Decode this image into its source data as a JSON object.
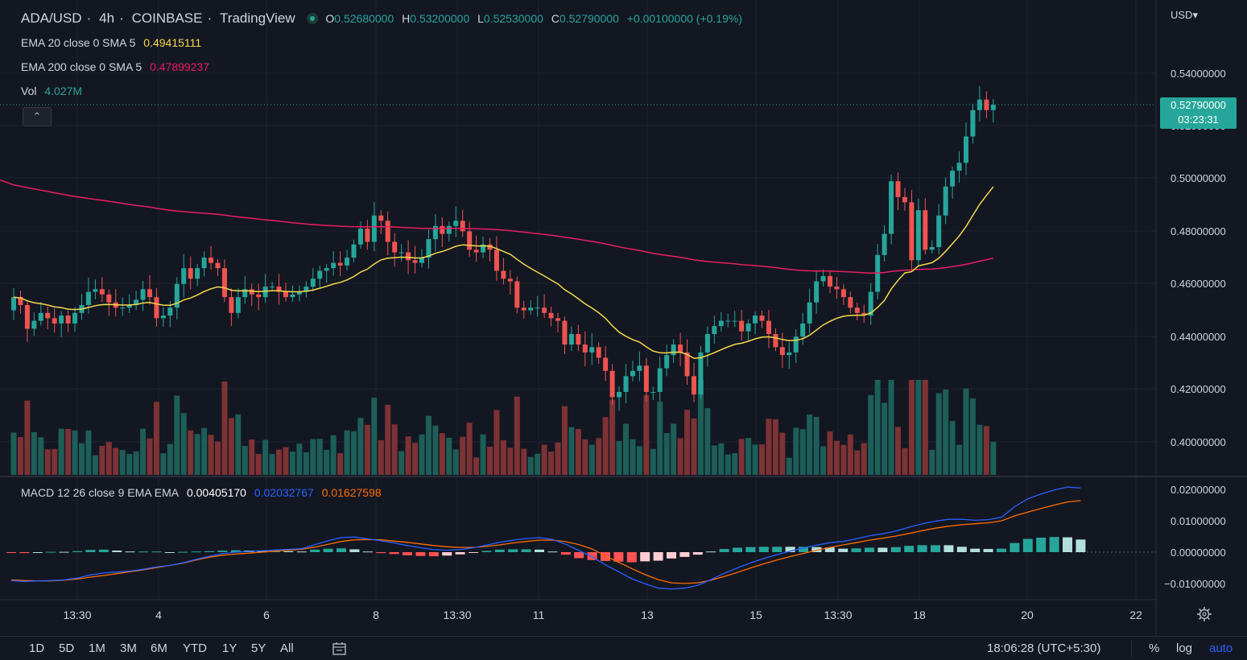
{
  "header": {
    "symbol": "ADA/USD",
    "interval": "4h",
    "exchange": "COINBASE",
    "provider": "TradingView",
    "ohlc": {
      "o_label": "O",
      "o": "0.52680000",
      "h_label": "H",
      "h": "0.53200000",
      "l_label": "L",
      "l": "0.52530000",
      "c_label": "C",
      "c": "0.52790000",
      "change": "+0.00100000 (+0.19%)"
    },
    "separator": "·"
  },
  "indicators": {
    "ema20": {
      "label": "EMA 20 close 0 SMA 5",
      "value": "0.49415111",
      "color": "#f5d94a"
    },
    "ema200": {
      "label": "EMA 200 close 0 SMA 5",
      "value": "0.47899237",
      "color": "#e91e63"
    },
    "vol": {
      "label": "Vol",
      "value": "4.027M"
    },
    "macd": {
      "label": "MACD 12 26 close 9 EMA EMA",
      "hist": "0.00405170",
      "macd": "0.02032767",
      "signal": "0.01627598",
      "macd_color": "#2962ff",
      "signal_color": "#ff6d00"
    }
  },
  "price_axis": {
    "currency": "USD",
    "currency_caret": "▾",
    "labels": [
      "0.54000000",
      "0.52000000",
      "0.50000000",
      "0.48000000",
      "0.46000000",
      "0.44000000",
      "0.42000000",
      "0.40000000"
    ],
    "last_price": "0.52790000",
    "countdown": "03:23:31"
  },
  "macd_axis": {
    "labels": [
      "0.02000000",
      "0.01000000",
      "0.00000000",
      "−0.01000000"
    ]
  },
  "time_axis": {
    "labels": [
      "13:30",
      "4",
      "6",
      "8",
      "13:30",
      "11",
      "13",
      "15",
      "13:30",
      "18",
      "20",
      "22"
    ]
  },
  "bottom_bar": {
    "ranges": [
      "1D",
      "5D",
      "1M",
      "3M",
      "6M",
      "YTD",
      "1Y",
      "5Y",
      "All"
    ],
    "clock": "18:06:28 (UTC+5:30)",
    "percent": "%",
    "log": "log",
    "auto": "auto"
  },
  "collapse_glyph": "⌃",
  "icons": [
    "status-dot-icon",
    "calendar-range-icon",
    "gear-icon"
  ],
  "colors": {
    "up": "#26a69a",
    "down": "#ef5350",
    "up_vol": "#1d5e58",
    "down_vol": "#7d3234",
    "bg": "#131722",
    "grid": "#1f2330"
  },
  "chart_data": {
    "type": "candlestick",
    "price_range": [
      0.39,
      0.552
    ],
    "close": [
      0.455,
      0.452,
      0.443,
      0.446,
      0.449,
      0.447,
      0.445,
      0.448,
      0.445,
      0.449,
      0.452,
      0.457,
      0.458,
      0.456,
      0.453,
      0.451,
      0.451,
      0.452,
      0.454,
      0.458,
      0.455,
      0.447,
      0.448,
      0.451,
      0.46,
      0.466,
      0.462,
      0.466,
      0.47,
      0.468,
      0.466,
      0.455,
      0.449,
      0.455,
      0.458,
      0.456,
      0.455,
      0.459,
      0.459,
      0.457,
      0.455,
      0.456,
      0.457,
      0.459,
      0.462,
      0.465,
      0.466,
      0.468,
      0.467,
      0.47,
      0.475,
      0.481,
      0.476,
      0.486,
      0.484,
      0.476,
      0.472,
      0.472,
      0.469,
      0.468,
      0.47,
      0.477,
      0.482,
      0.479,
      0.482,
      0.484,
      0.48,
      0.473,
      0.472,
      0.475,
      0.473,
      0.465,
      0.462,
      0.461,
      0.451,
      0.45,
      0.451,
      0.451,
      0.449,
      0.447,
      0.446,
      0.437,
      0.441,
      0.437,
      0.434,
      0.436,
      0.432,
      0.427,
      0.417,
      0.419,
      0.425,
      0.427,
      0.429,
      0.419,
      0.419,
      0.428,
      0.433,
      0.437,
      0.434,
      0.425,
      0.418,
      0.434,
      0.441,
      0.444,
      0.446,
      0.446,
      0.446,
      0.442,
      0.445,
      0.448,
      0.446,
      0.441,
      0.436,
      0.433,
      0.434,
      0.44,
      0.445,
      0.453,
      0.461,
      0.463,
      0.459,
      0.458,
      0.455,
      0.451,
      0.449,
      0.448,
      0.457,
      0.471,
      0.479,
      0.499,
      0.493,
      0.491,
      0.469,
      0.488,
      0.473,
      0.474,
      0.486,
      0.497,
      0.503,
      0.506,
      0.516,
      0.526,
      0.53,
      0.526,
      0.528
    ],
    "volume_max_M": 13,
    "volume_last": "4.027M",
    "macd": [
      -0.009,
      -0.0093,
      -0.0091,
      -0.009,
      -0.0088,
      -0.0082,
      -0.0072,
      -0.0066,
      -0.0063,
      -0.006,
      -0.0054,
      -0.0047,
      -0.0042,
      -0.0034,
      -0.0023,
      -0.0013,
      -0.0005,
      0,
      0.0002,
      0.0004,
      0.0007,
      0.0009,
      0.0011,
      0.0024,
      0.0036,
      0.0046,
      0.0048,
      0.0042,
      0.0036,
      0.0029,
      0.0021,
      0.0014,
      0.0008,
      0.0006,
      0.0008,
      0.0014,
      0.0022,
      0.0031,
      0.0038,
      0.0043,
      0.0046,
      0.004,
      0.0025,
      0.0005,
      -0.0015,
      -0.004,
      -0.0062,
      -0.0084,
      -0.01,
      -0.0114,
      -0.0117,
      -0.0114,
      -0.0105,
      -0.0087,
      -0.0067,
      -0.005,
      -0.0034,
      -0.002,
      -0.0008,
      0.0003,
      0.0013,
      0.0022,
      0.003,
      0.0034,
      0.0042,
      0.0052,
      0.0058,
      0.0067,
      0.0079,
      0.009,
      0.0098,
      0.0104,
      0.0104,
      0.0101,
      0.0103,
      0.011,
      0.0144,
      0.0169,
      0.0184,
      0.0197,
      0.0206,
      0.0203
    ],
    "signal": [
      -0.0088,
      -0.009,
      -0.0091,
      -0.0091,
      -0.0089,
      -0.0085,
      -0.0079,
      -0.0074,
      -0.0068,
      -0.0062,
      -0.0056,
      -0.0049,
      -0.0042,
      -0.0035,
      -0.0025,
      -0.0016,
      -0.001,
      -0.0006,
      -0.0003,
      0,
      0.0003,
      0.0006,
      0.0009,
      0.0016,
      0.0025,
      0.0034,
      0.0039,
      0.004,
      0.0039,
      0.0035,
      0.0031,
      0.0026,
      0.0021,
      0.0017,
      0.0015,
      0.0015,
      0.0018,
      0.0023,
      0.0029,
      0.0034,
      0.0038,
      0.0038,
      0.0033,
      0.0024,
      0.001,
      -0.0012,
      -0.0032,
      -0.0052,
      -0.0071,
      -0.0087,
      -0.0097,
      -0.0099,
      -0.0097,
      -0.0089,
      -0.0077,
      -0.0064,
      -0.005,
      -0.0037,
      -0.0025,
      -0.0014,
      -0.0004,
      0.0006,
      0.0015,
      0.0023,
      0.003,
      0.0038,
      0.0044,
      0.0051,
      0.0059,
      0.0068,
      0.0076,
      0.0082,
      0.0087,
      0.009,
      0.0093,
      0.0099,
      0.0115,
      0.0127,
      0.0138,
      0.0149,
      0.0159,
      0.0163
    ]
  }
}
